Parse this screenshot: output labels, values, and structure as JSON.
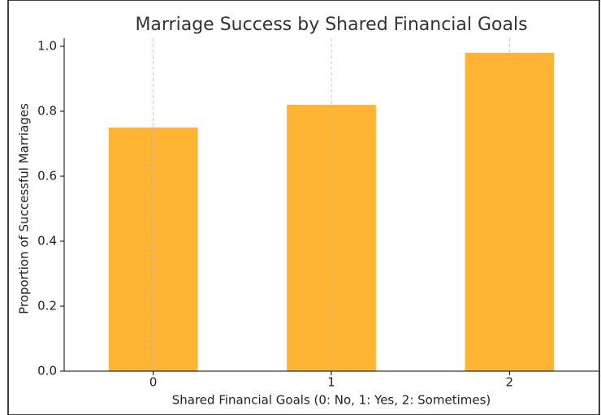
{
  "chart_data": {
    "type": "bar",
    "title": "Marriage Success by Shared Financial Goals",
    "x_label": "Shared Financial Goals (0: No, 1: Yes, 2: Sometimes)",
    "y_label": "Proportion of Successful Marriages",
    "categories": [
      "0",
      "1",
      "2"
    ],
    "values": [
      0.75,
      0.82,
      0.98
    ],
    "color": "#ffb433",
    "ylim": [
      0,
      1.025
    ],
    "yticks": [
      {
        "value": 0,
        "label": "0.0"
      },
      {
        "value": 0.2,
        "label": "0.2"
      },
      {
        "value": 0.4,
        "label": "0.4"
      },
      {
        "value": 0.6,
        "label": "0.6"
      },
      {
        "value": 0.8,
        "label": "0.8"
      },
      {
        "value": 1,
        "label": "1.0"
      }
    ],
    "grid": "x"
  }
}
